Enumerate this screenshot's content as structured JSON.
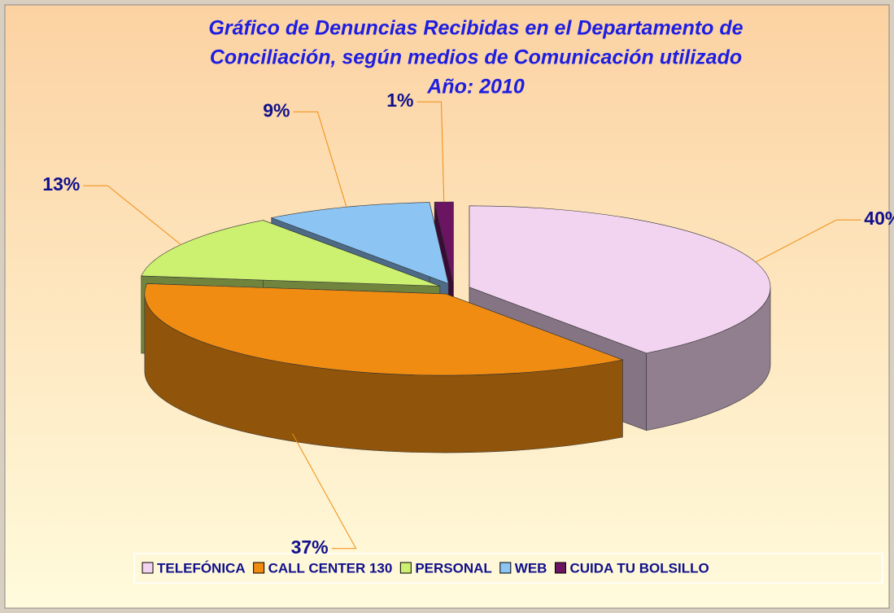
{
  "chart_data": {
    "type": "pie3d",
    "title": [
      "Gráfico de Denuncias Recibidas en el Departamento de",
      "Conciliación, según medios de Comunicación utilizado",
      "Año: 2010"
    ],
    "categories": [
      "TELEFÓNICA",
      "CALL CENTER 130",
      "PERSONAL",
      "WEB",
      "CUIDA TU BOLSILLO"
    ],
    "values": [
      40,
      37,
      13,
      9,
      1
    ],
    "value_labels": [
      "40%",
      "37%",
      "13%",
      "9%",
      "1%"
    ],
    "colors": [
      "#f2d4f0",
      "#f08c12",
      "#ccf070",
      "#8cc4f4",
      "#6a1462"
    ],
    "legend": "bottom"
  }
}
